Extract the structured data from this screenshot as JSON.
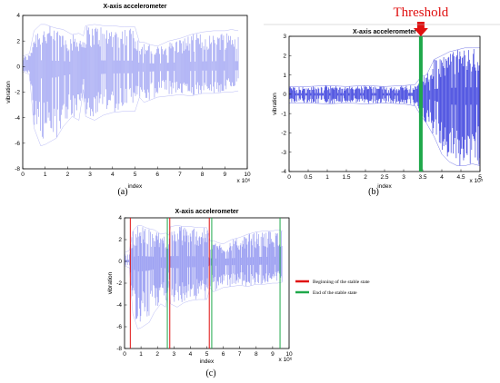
{
  "chart_data": [
    {
      "id": "a",
      "type": "line",
      "panel_label": "(a)",
      "title": "X-axis accelerometer",
      "xlabel": "index",
      "ylabel": "vibration",
      "x_exponent_label": "x 10⁶",
      "xlim": [
        0,
        10
      ],
      "ylim": [
        -8,
        4
      ],
      "xticks": [
        0,
        1,
        2,
        3,
        4,
        5,
        6,
        7,
        8,
        9,
        10
      ],
      "yticks": [
        -8,
        -6,
        -4,
        -2,
        0,
        2,
        4
      ],
      "color": "#8a8ef0",
      "series": [
        {
          "envelope": {
            "x": [
              0.0,
              0.3,
              0.5,
              0.8,
              1.0,
              1.3,
              1.5,
              1.8,
              2.2,
              2.5,
              2.7,
              2.8,
              3.2,
              3.6,
              4.0,
              4.5,
              5.0,
              5.2,
              5.4,
              5.7,
              6.0,
              6.5,
              7.0,
              7.5,
              8.0,
              8.5,
              9.0,
              9.3,
              9.6
            ],
            "upper": [
              0.8,
              1.0,
              2.8,
              3.3,
              3.3,
              3.1,
              3.0,
              2.9,
              2.5,
              2.6,
              2.4,
              3.2,
              3.3,
              3.2,
              3.2,
              3.1,
              3.1,
              1.9,
              1.9,
              1.7,
              1.6,
              2.0,
              2.2,
              2.5,
              2.7,
              2.8,
              2.8,
              2.9,
              2.8
            ],
            "lower": [
              -0.4,
              -0.6,
              -4.8,
              -6.2,
              -6.1,
              -5.8,
              -5.6,
              -4.7,
              -3.9,
              -4.2,
              -1.8,
              -3.9,
              -4.2,
              -3.8,
              -3.6,
              -3.5,
              -3.5,
              -2.4,
              -2.8,
              -2.6,
              -2.4,
              -2.3,
              -2.2,
              -2.3,
              -2.1,
              -2.1,
              -2.0,
              -2.0,
              -1.9
            ]
          }
        }
      ]
    },
    {
      "id": "b",
      "type": "line",
      "panel_label": "(b)",
      "title": "X-axis accelerometer",
      "xlabel": "index",
      "ylabel": "vibration",
      "x_exponent_label": "x 10⁵",
      "xlim": [
        0,
        5
      ],
      "ylim": [
        -4,
        3
      ],
      "xticks": [
        0,
        0.5,
        1,
        1.5,
        2,
        2.5,
        3,
        3.5,
        4,
        4.5,
        5
      ],
      "yticks": [
        -4,
        -3,
        -2,
        -1,
        0,
        1,
        2,
        3
      ],
      "color": "#1c22d8",
      "threshold": {
        "label": "Threshold",
        "x": 3.45,
        "color": "#1fa84a",
        "arrow_color": "#e01010"
      },
      "series": [
        {
          "envelope": {
            "x": [
              0.0,
              0.5,
              1.0,
              1.5,
              2.0,
              2.5,
              3.0,
              3.3,
              3.45,
              3.6,
              3.8,
              4.0,
              4.2,
              4.4,
              4.6,
              4.8,
              5.0
            ],
            "upper": [
              0.4,
              0.4,
              0.45,
              0.4,
              0.45,
              0.4,
              0.45,
              0.5,
              0.9,
              1.0,
              1.8,
              2.0,
              2.2,
              2.3,
              2.4,
              2.4,
              2.4
            ],
            "lower": [
              -0.45,
              -0.45,
              -0.5,
              -0.45,
              -0.5,
              -0.45,
              -0.5,
              -0.6,
              -1.1,
              -1.5,
              -2.2,
              -3.1,
              -3.5,
              -3.7,
              -3.7,
              -3.6,
              -3.7
            ]
          }
        }
      ]
    },
    {
      "id": "c",
      "type": "line",
      "panel_label": "(c)",
      "title": "X-axis accelerometer",
      "xlabel": "index",
      "ylabel": "vibration",
      "x_exponent_label": "x 10⁶",
      "xlim": [
        0,
        10
      ],
      "ylim": [
        -8,
        4
      ],
      "xticks": [
        0,
        1,
        2,
        3,
        4,
        5,
        6,
        7,
        8,
        9,
        10
      ],
      "yticks": [
        -8,
        -6,
        -4,
        -2,
        0,
        2,
        4
      ],
      "color": "#8a8ef0",
      "legend": [
        {
          "label": "Beginning of the stable state",
          "color": "#e01010"
        },
        {
          "label": "End of the stable state",
          "color": "#1fa84a"
        }
      ],
      "markers": {
        "red_x": [
          0.35,
          2.75,
          5.15
        ],
        "green_x": [
          2.6,
          5.3,
          9.45
        ]
      },
      "series": [
        {
          "envelope": {
            "x": [
              0.0,
              0.3,
              0.5,
              0.8,
              1.0,
              1.3,
              1.5,
              1.8,
              2.2,
              2.5,
              2.7,
              2.8,
              3.2,
              3.6,
              4.0,
              4.5,
              5.0,
              5.2,
              5.4,
              5.7,
              6.0,
              6.5,
              7.0,
              7.5,
              8.0,
              8.5,
              9.0,
              9.3,
              9.6
            ],
            "upper": [
              0.8,
              1.0,
              2.8,
              3.3,
              3.3,
              3.1,
              3.0,
              2.9,
              2.5,
              2.6,
              2.4,
              3.2,
              3.3,
              3.2,
              3.2,
              3.1,
              3.1,
              1.9,
              1.9,
              1.7,
              1.6,
              2.0,
              2.2,
              2.5,
              2.7,
              2.8,
              2.8,
              2.9,
              2.8
            ],
            "lower": [
              -0.4,
              -0.6,
              -4.8,
              -6.2,
              -6.1,
              -5.8,
              -5.6,
              -4.7,
              -3.9,
              -4.2,
              -1.8,
              -3.9,
              -4.2,
              -3.8,
              -3.6,
              -3.5,
              -3.5,
              -2.4,
              -2.8,
              -2.6,
              -2.4,
              -2.3,
              -2.2,
              -2.3,
              -2.1,
              -2.1,
              -2.0,
              -2.0,
              -1.9
            ]
          }
        }
      ]
    }
  ]
}
